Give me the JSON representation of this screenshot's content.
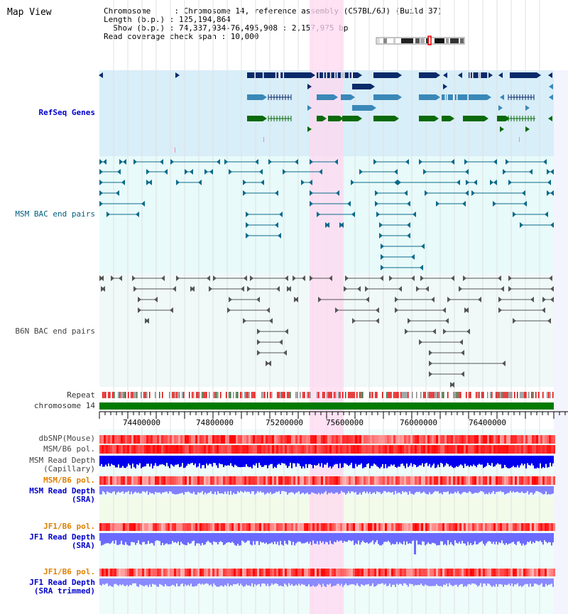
{
  "title": "Map View",
  "info": {
    "line1": "Chromosome     : Chromosome 14, reference assembly (C57BL/6J) (Build 37)",
    "line2": "Length (b.p.) : 125,194,864",
    "line3": "  Show (b.p.) : 74,337,934-76,495,908 : 2,157,975 bp",
    "line4": "Read coverage check span : 10,000"
  },
  "tracks": {
    "refseq": "RefSeq Genes",
    "msm_bac": "MSM BAC end pairs",
    "b6n_bac": "B6N BAC end pairs",
    "repeat": "Repeat",
    "chromosome": "chromosome 14",
    "dbsnp": "dbSNP(Mouse)",
    "msm_b6_pol": "MSM/B6 pol.",
    "msm_read_depth_cap_1": "MSM Read Depth",
    "msm_read_depth_cap_2": "(Capillary)",
    "msm_b6_pol_sra": "MSM/B6 pol.",
    "msm_read_depth_sra_1": "MSM Read Depth",
    "msm_read_depth_sra_2": "(SRA)",
    "jf1_b6_pol": "JF1/B6 pol.",
    "jf1_read_depth_1": "JF1 Read Depth",
    "jf1_read_depth_2": "(SRA)",
    "jf1_b6_pol_trim": "JF1/B6 pol.",
    "jf1_read_depth_trim_1": "JF1 Read Depth",
    "jf1_read_depth_trim_2": "(SRA trimmed)"
  },
  "axis": {
    "ticks": [
      "74400000",
      "74800000",
      "75200000",
      "75600000",
      "76000000",
      "76400000"
    ]
  },
  "colors": {
    "refseq_bg": "#d8eef8",
    "msm_bg": "#e8fafa",
    "b6n_bg": "#f0f8f8",
    "highlight": "#ffd8f0",
    "gene_navy": "#0a2a6a",
    "gene_mid": "#3a88b8",
    "gene_green": "#0a6a0a",
    "bac_teal": "#0a6a8a",
    "bac_gray": "#555555",
    "chrom_green": "#007a00",
    "depth_blue": "#0000ee",
    "depth_light": "#8080ff",
    "pol_red": "#ff4040"
  }
}
